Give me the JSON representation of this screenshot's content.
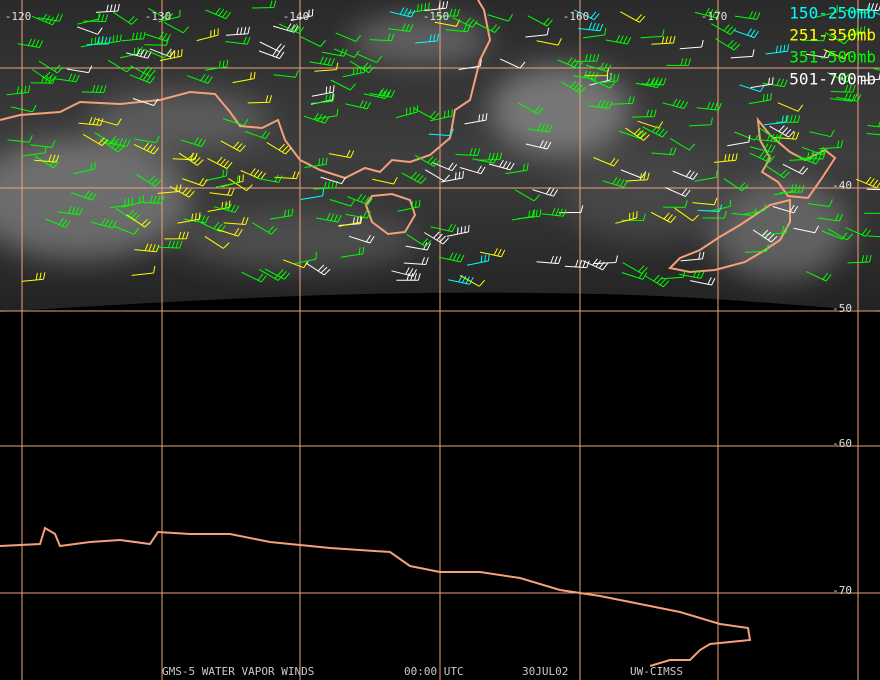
{
  "longitude_labels": [
    "-120",
    "-130",
    "-140",
    "-150",
    "-160",
    "-170"
  ],
  "latitude_labels": [
    "-40",
    "-50",
    "-60",
    "-70"
  ],
  "legend": [
    {
      "label": "150-250mb",
      "color": "#00ffff"
    },
    {
      "label": "251-350mb",
      "color": "#ffff00"
    },
    {
      "label": "351-500mb",
      "color": "#00ff00"
    },
    {
      "label": "501-700mb",
      "color": "#ffffff"
    }
  ],
  "footer": [
    "GMS-5 WATER VAPOR WINDS",
    "00:00 UTC",
    "30JUL02",
    "UW-CIMSS"
  ]
}
